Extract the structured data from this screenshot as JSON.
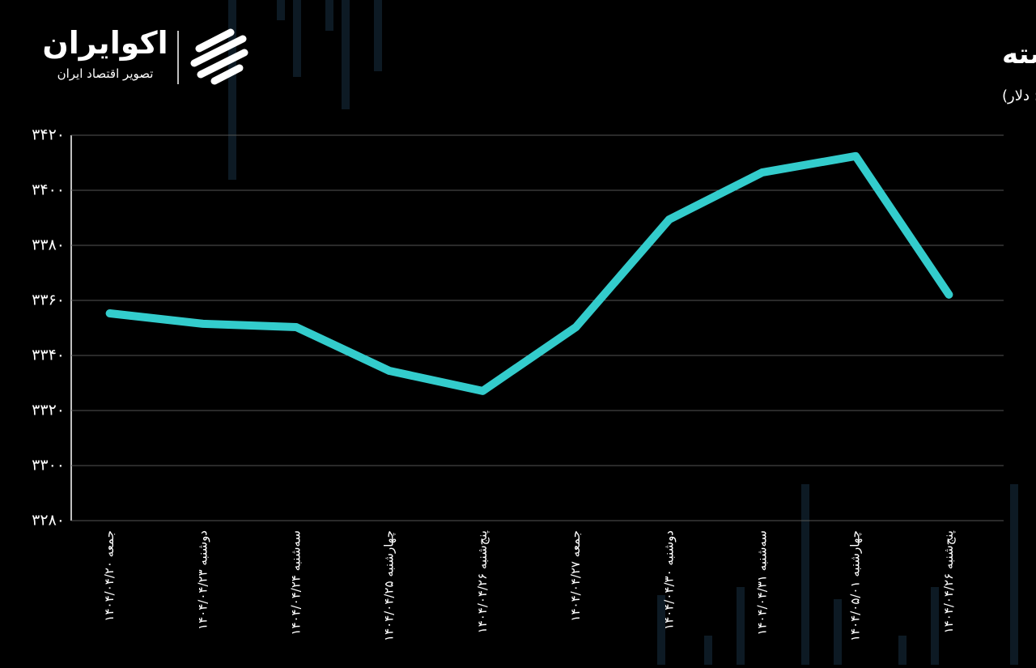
{
  "logo": {
    "name": "اکوایران",
    "tagline": "تصویر اقتصاد ایران"
  },
  "chart_data": {
    "type": "line",
    "title": "روند اونس جهانی طلا در دو هفته گذشته",
    "subtitle": "(واحد: دلار)",
    "categories": [
      "جمعه ۱۴۰۴/۰۴/۲۰",
      "دوشنبه ۱۴۰۴/۰۴/۲۳",
      "سه‌شنبه ۱۴۰۴/۰۴/۲۴",
      "چهارشنبه ۱۴۰۴/۰۴/۲۵",
      "پنج‌شنبه ۱۴۰۴/۰۴/۲۶",
      "جمعه ۱۴۰۴/۰۴/۲۷",
      "دوشنبه ۱۴۰۴/۰۴/۳۰",
      "سه‌شنبه ۱۴۰۴/۰۴/۳۱",
      "چهارشنبه ۱۴۰۴/۰۵/۰۱",
      "پنج‌شنبه ۱۴۰۴/۰۴/۲۶"
    ],
    "values": [
      3355.3,
      3351.5,
      3350.3,
      3334.4,
      3327.1,
      3350.3,
      3389.4,
      3406.5,
      3412.4,
      3362.1
    ],
    "color": "#33cccc",
    "ylim": [
      3280,
      3420
    ],
    "yticks": [
      {
        "value": 3280,
        "label": "۳۲۸۰"
      },
      {
        "value": 3300,
        "label": "۳۳۰۰"
      },
      {
        "value": 3320,
        "label": "۳۳۲۰"
      },
      {
        "value": 3340,
        "label": "۳۳۴۰"
      },
      {
        "value": 3360,
        "label": "۳۳۶۰"
      },
      {
        "value": 3380,
        "label": "۳۳۸۰"
      },
      {
        "value": 3400,
        "label": "۳۴۰۰"
      },
      {
        "value": 3420,
        "label": "۳۴۲۰"
      }
    ],
    "grid": true
  }
}
